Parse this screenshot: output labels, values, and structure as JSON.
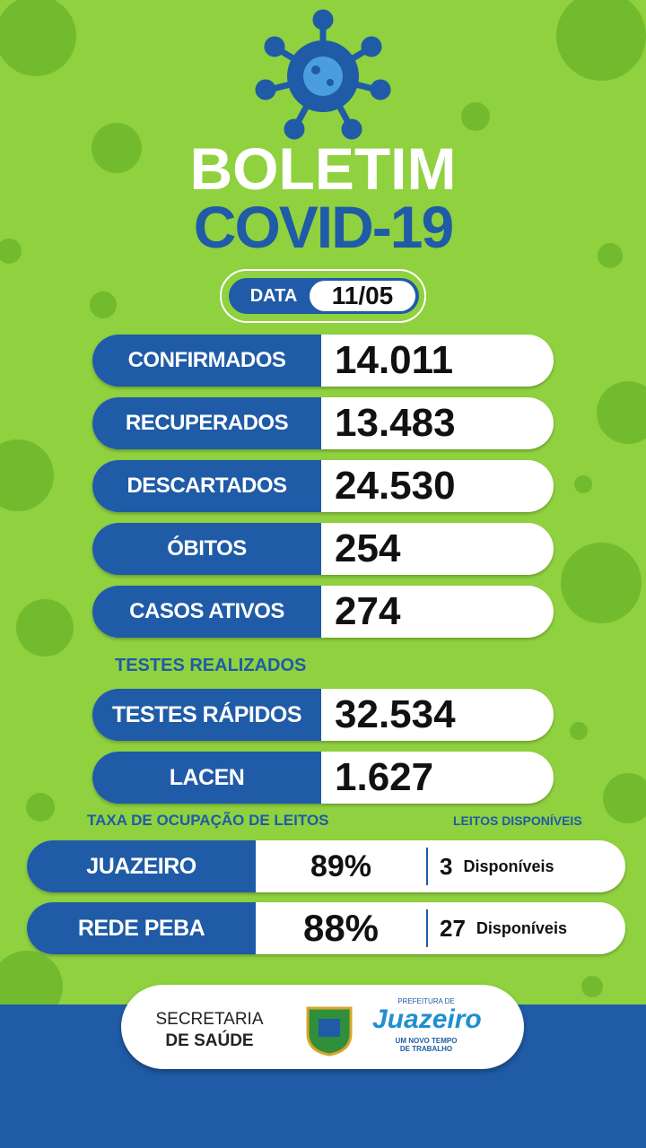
{
  "header": {
    "title": "BOLETIM",
    "subtitle": "COVID-19",
    "date_label": "DATA",
    "date": "11/05"
  },
  "cases": [
    {
      "label": "CONFIRMADOS",
      "value": "14.011"
    },
    {
      "label": "RECUPERADOS",
      "value": "13.483"
    },
    {
      "label": "DESCARTADOS",
      "value": "24.530"
    },
    {
      "label": "ÓBITOS",
      "value": "254"
    },
    {
      "label": "CASOS ATIVOS",
      "value": "274"
    }
  ],
  "tests": {
    "title": "TESTES REALIZADOS",
    "rows": [
      {
        "label": "TESTES RÁPIDOS",
        "value": "32.534"
      },
      {
        "label": "LACEN",
        "value": "1.627"
      }
    ]
  },
  "beds": {
    "title": "TAXA DE OCUPAÇÃO DE LEITOS",
    "available_title": "LEITOS DISPONÍVEIS",
    "rows": [
      {
        "label": "JUAZEIRO",
        "occupancy": "89%",
        "available": "3",
        "available_label": "Disponíveis"
      },
      {
        "label": "REDE PEBA",
        "occupancy": "88%",
        "available": "27",
        "available_label": "Disponíveis"
      }
    ]
  },
  "footer": {
    "line1": "SECRETARIA",
    "line2": "DE SAÚDE",
    "logo_top": "PREFEITURA DE",
    "logo_name": "Juazeiro",
    "logo_slogan1": "UM NOVO TEMPO",
    "logo_slogan2": "DE TRABALHO"
  }
}
